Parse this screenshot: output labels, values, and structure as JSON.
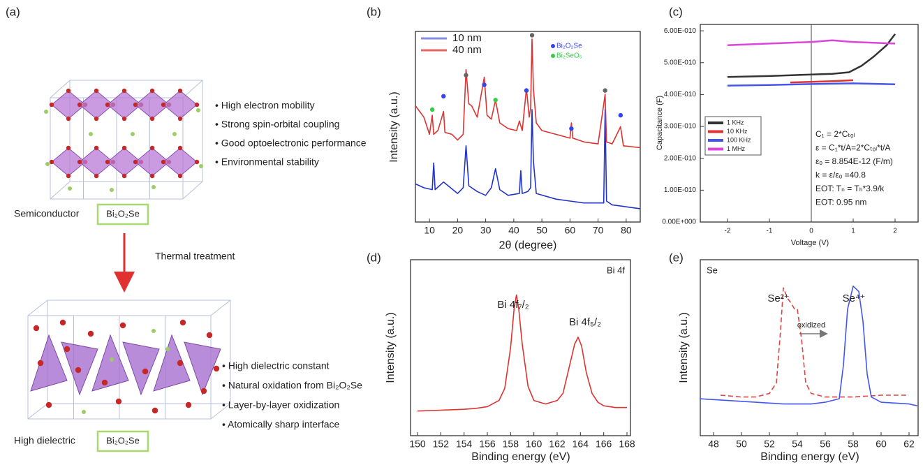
{
  "diagram": {
    "panel": "(a)",
    "top": {
      "label": "Semiconductor",
      "formula": "Bi₂O₂Se",
      "properties": [
        "• High electron mobility",
        "• Strong spin-orbital coupling",
        "• Good optoelectronic performance",
        "• Environmental stability"
      ]
    },
    "transition": "Thermal treatment",
    "bottom": {
      "label": "High dielectric",
      "formula": "Bi₂O₂Se",
      "properties": [
        "• High dielectric constant",
        "• Natural oxidation from Bi₂O₂Se",
        "• Layer-by-layer oxidization",
        "• Atomically sharp interface"
      ]
    }
  },
  "chart_data": [
    {
      "type": "line",
      "panel": "(b)",
      "xlabel": "2θ (degree)",
      "ylabel": "Intensity (a.u.)",
      "xlim": [
        5,
        85
      ],
      "xticks": [
        10,
        20,
        30,
        40,
        50,
        60,
        70,
        80
      ],
      "ylim": [
        0,
        100
      ],
      "series": [
        {
          "name": "10 nm",
          "color": "#2233cc",
          "x": [
            5,
            8,
            11,
            11.5,
            12,
            15,
            20,
            22,
            23,
            24,
            27,
            30,
            32,
            33.5,
            35,
            38,
            42,
            42.5,
            43,
            45,
            46,
            46.5,
            47,
            48,
            55,
            60,
            65,
            72,
            72.5,
            73,
            75,
            80,
            85
          ],
          "values": [
            20,
            18,
            17,
            31,
            17,
            21,
            15,
            18,
            40,
            19,
            16,
            14,
            18,
            28,
            17,
            14,
            15,
            27,
            15,
            16,
            18,
            59,
            32,
            15,
            12,
            11,
            10,
            10,
            59,
            11,
            9,
            8,
            7
          ]
        },
        {
          "name": "40 nm",
          "color": "#dd3333",
          "x": [
            5,
            8,
            10,
            11,
            11.5,
            13,
            15,
            15.5,
            18,
            20,
            22,
            23,
            24,
            25,
            27,
            29.5,
            30.5,
            32,
            33.5,
            35,
            38,
            41,
            42,
            43,
            44.5,
            45.5,
            46,
            46.5,
            47,
            48,
            50,
            55,
            60,
            60.5,
            61,
            65,
            70,
            72.5,
            73,
            75,
            78,
            79,
            85
          ],
          "values": [
            61,
            55,
            46,
            56,
            46,
            48,
            58,
            47,
            46,
            43,
            46,
            80,
            62,
            61,
            55,
            76,
            56,
            54,
            64,
            52,
            49,
            48,
            53,
            48,
            70,
            55,
            60,
            96,
            70,
            52,
            48,
            46,
            44,
            52,
            44,
            42,
            41,
            67,
            42,
            41,
            50,
            40,
            39
          ]
        }
      ],
      "markers": [
        {
          "name": "Bi₂O₂Se",
          "color": "#3344ee",
          "x": [
            15,
            29.5,
            44.5,
            60.5,
            78
          ],
          "values": [
            66,
            72,
            69,
            49,
            56
          ]
        },
        {
          "name": "Bi₂SeO₅",
          "color": "#33cc44",
          "x": [
            11,
            33.5
          ],
          "values": [
            59,
            64
          ]
        },
        {
          "color": "#666666",
          "x": [
            23,
            46.5,
            72.5
          ],
          "values": [
            77,
            98,
            69
          ]
        }
      ]
    },
    {
      "type": "line",
      "panel": "(c)",
      "xlabel": "Voltage (V)",
      "ylabel": "Capacitance (F)",
      "xlim": [
        -2.65,
        2.55
      ],
      "xticks": [
        -2,
        -1,
        0,
        1,
        2
      ],
      "ylim": [
        0,
        6.2e-10
      ],
      "yticks": [
        {
          "value": 0,
          "label": "0.00E+000"
        },
        {
          "value": 1e-10,
          "label": "1.00E-010"
        },
        {
          "value": 2e-10,
          "label": "2.00E-010"
        },
        {
          "value": 3e-10,
          "label": "3.00E-010"
        },
        {
          "value": 4e-10,
          "label": "4.00E-010"
        },
        {
          "value": 5e-10,
          "label": "5.00E-010"
        },
        {
          "value": 6e-10,
          "label": "6.00E-010"
        }
      ],
      "vline": 0,
      "series": [
        {
          "name": "1 KHz",
          "color": "#333333",
          "x": [
            -2,
            -1,
            0,
            0.5,
            0.9,
            1.2,
            1.5,
            1.8,
            2
          ],
          "values": [
            4.55e-10,
            4.58e-10,
            4.63e-10,
            4.65e-10,
            4.7e-10,
            4.9e-10,
            5.2e-10,
            5.55e-10,
            5.9e-10
          ]
        },
        {
          "name": "10 KHz",
          "color": "#dd3333",
          "x": [
            -0.5,
            0,
            0.5,
            1
          ],
          "values": [
            4.38e-10,
            4.4e-10,
            4.42e-10,
            4.45e-10
          ]
        },
        {
          "name": "100 KHz",
          "color": "#4455ee",
          "x": [
            -2,
            -1,
            0,
            1,
            2
          ],
          "values": [
            4.28e-10,
            4.3e-10,
            4.33e-10,
            4.35e-10,
            4.32e-10
          ]
        },
        {
          "name": "1 MHz",
          "color": "#dd44dd",
          "x": [
            -2,
            -1,
            0,
            0.5,
            1,
            2
          ],
          "values": [
            5.55e-10,
            5.6e-10,
            5.65e-10,
            5.7e-10,
            5.65e-10,
            5.6e-10
          ]
        }
      ],
      "annotations": [
        "C₁ = 2*Cₜₒₗ",
        "ε = C₁*t/A=2*Cₜₒₗ*t/A",
        "εₒ = 8.854E-12 (F/m)",
        "k = ε/εₒ =40.8",
        "EOT: Tₙ = Tₕ*3.9/k",
        "EOT: 0.95 nm"
      ]
    },
    {
      "type": "line",
      "panel": "(d)",
      "xlabel": "Binding energy (eV)",
      "ylabel": "Intensity (a.u.)",
      "xlim": [
        149.4,
        168.3
      ],
      "xticks": [
        150,
        152,
        154,
        156,
        158,
        160,
        162,
        164,
        166,
        168
      ],
      "ylim": [
        0,
        100
      ],
      "series": [
        {
          "color": "#dd3333",
          "x": [
            150,
            152,
            154,
            155,
            156,
            157,
            157.5,
            158,
            158.3,
            158.5,
            158.7,
            159,
            159.5,
            160,
            161,
            162,
            162.5,
            163,
            163.5,
            163.8,
            164.1,
            164.5,
            165,
            165.5,
            166,
            167,
            168
          ],
          "values": [
            14,
            14.5,
            15,
            15.5,
            16.5,
            20,
            27,
            50,
            72,
            80,
            72,
            52,
            28,
            20,
            18,
            20,
            24,
            38,
            52,
            56,
            51,
            36,
            24,
            19,
            17,
            16,
            16
          ]
        }
      ],
      "annotations": [
        "Bi 4f",
        "Bi 4f₇/₂",
        "Bi 4f₅/₂"
      ]
    },
    {
      "type": "line",
      "panel": "(e)",
      "xlabel": "Binding energy (eV)",
      "ylabel": "Intensity (a.u.)",
      "xlim": [
        47.05,
        62.65
      ],
      "xticks": [
        48,
        50,
        52,
        54,
        56,
        58,
        60,
        62
      ],
      "ylim": [
        0,
        100
      ],
      "series": [
        {
          "color": "#dd4444",
          "dash": true,
          "x": [
            48.5,
            50,
            51,
            52,
            52.5,
            52.8,
            53,
            53.3,
            53.5,
            53.8,
            54,
            54.3,
            54.6,
            55,
            56,
            57,
            58,
            60,
            62
          ],
          "values": [
            23,
            22,
            22,
            24,
            30,
            60,
            84,
            78,
            76,
            72,
            72,
            55,
            30,
            24,
            22,
            22,
            22,
            23,
            23
          ]
        },
        {
          "color": "#4455ee",
          "x": [
            47,
            49,
            51,
            53,
            55,
            56,
            57,
            57.3,
            57.6,
            58,
            58.4,
            58.7,
            59,
            59.3,
            60,
            62,
            62.6
          ],
          "values": [
            21,
            20,
            19,
            18,
            18,
            19,
            21,
            40,
            72,
            85,
            82,
            65,
            35,
            22,
            19,
            18,
            17
          ]
        }
      ],
      "annotations": [
        "Se",
        "Se²⁺",
        "Se⁴⁺",
        "oxidized"
      ]
    }
  ]
}
